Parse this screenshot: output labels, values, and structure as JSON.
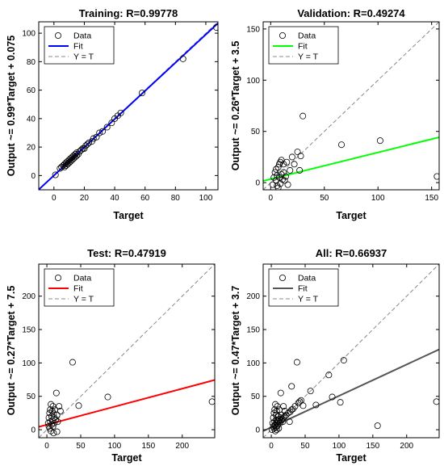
{
  "chart_data": [
    {
      "type": "scatter",
      "title": "Training: R=0.99778",
      "xlabel": "Target",
      "ylabel": "Output ~= 0.99*Target + 0.075",
      "xlim": [
        -10,
        108
      ],
      "ylim": [
        -10,
        108
      ],
      "xticks": [
        0,
        20,
        40,
        60,
        80,
        100
      ],
      "yticks": [
        0,
        20,
        40,
        60,
        80,
        100
      ],
      "fit": {
        "slope": 0.99,
        "intercept": 0.075,
        "color": "#0000ff"
      },
      "legend": {
        "position": "top-left",
        "entries": [
          "Data",
          "Fit",
          "Y = T"
        ]
      },
      "points": [
        [
          1,
          0.5
        ],
        [
          4,
          5
        ],
        [
          5,
          6
        ],
        [
          6,
          7
        ],
        [
          7,
          6
        ],
        [
          7,
          8
        ],
        [
          8,
          7
        ],
        [
          8,
          9
        ],
        [
          9,
          8
        ],
        [
          9,
          10
        ],
        [
          10,
          9
        ],
        [
          10,
          11
        ],
        [
          11,
          10
        ],
        [
          11,
          12
        ],
        [
          12,
          11
        ],
        [
          12,
          13
        ],
        [
          13,
          12
        ],
        [
          13,
          14
        ],
        [
          14,
          13
        ],
        [
          14,
          15
        ],
        [
          15,
          14
        ],
        [
          15,
          16
        ],
        [
          16,
          15
        ],
        [
          17,
          17
        ],
        [
          18,
          18
        ],
        [
          19,
          19
        ],
        [
          20,
          19
        ],
        [
          21,
          21
        ],
        [
          22,
          22
        ],
        [
          23,
          23
        ],
        [
          25,
          24
        ],
        [
          26,
          26
        ],
        [
          28,
          27
        ],
        [
          30,
          30
        ],
        [
          32,
          31
        ],
        [
          35,
          34
        ],
        [
          38,
          37
        ],
        [
          40,
          40
        ],
        [
          42,
          42
        ],
        [
          44,
          44
        ],
        [
          58,
          58
        ],
        [
          85,
          82
        ],
        [
          107,
          104
        ]
      ]
    },
    {
      "type": "scatter",
      "title": "Validation: R=0.49274",
      "xlabel": "Target",
      "ylabel": "Output ~= 0.26*Target + 3.5",
      "xlim": [
        -7,
        157
      ],
      "ylim": [
        -7,
        157
      ],
      "xticks": [
        0,
        50,
        100,
        150
      ],
      "yticks": [
        0,
        50,
        100,
        150
      ],
      "fit": {
        "slope": 0.26,
        "intercept": 3.5,
        "color": "#00ff00"
      },
      "legend": {
        "position": "top-left",
        "entries": [
          "Data",
          "Fit",
          "Y = T"
        ]
      },
      "points": [
        [
          2,
          -2
        ],
        [
          3,
          5
        ],
        [
          4,
          10
        ],
        [
          5,
          13
        ],
        [
          5,
          2
        ],
        [
          6,
          7
        ],
        [
          6,
          -3
        ],
        [
          7,
          -5
        ],
        [
          7,
          15
        ],
        [
          8,
          5
        ],
        [
          8,
          18
        ],
        [
          9,
          20
        ],
        [
          9,
          -1
        ],
        [
          10,
          8
        ],
        [
          10,
          22
        ],
        [
          11,
          3
        ],
        [
          12,
          18
        ],
        [
          12,
          10
        ],
        [
          13,
          2
        ],
        [
          14,
          6
        ],
        [
          15,
          20
        ],
        [
          16,
          -2
        ],
        [
          18,
          12
        ],
        [
          20,
          25
        ],
        [
          22,
          18
        ],
        [
          25,
          30
        ],
        [
          27,
          12
        ],
        [
          28,
          26
        ],
        [
          30,
          65
        ],
        [
          66,
          37
        ],
        [
          102,
          41
        ],
        [
          155,
          6
        ]
      ]
    },
    {
      "type": "scatter",
      "title": "Test: R=0.47919",
      "xlabel": "Target",
      "ylabel": "Output ~= 0.27*Target + 7.5",
      "xlim": [
        -12,
        248
      ],
      "ylim": [
        -12,
        248
      ],
      "xticks": [
        0,
        50,
        100,
        150,
        200
      ],
      "yticks": [
        0,
        50,
        100,
        150,
        200
      ],
      "fit": {
        "slope": 0.27,
        "intercept": 7.5,
        "color": "#ff0000"
      },
      "legend": {
        "position": "top-left",
        "entries": [
          "Data",
          "Fit",
          "Y = T"
        ]
      },
      "points": [
        [
          2,
          10
        ],
        [
          3,
          18
        ],
        [
          3,
          5
        ],
        [
          4,
          25
        ],
        [
          4,
          2
        ],
        [
          5,
          30
        ],
        [
          5,
          12
        ],
        [
          6,
          38
        ],
        [
          6,
          -2
        ],
        [
          7,
          20
        ],
        [
          7,
          8
        ],
        [
          8,
          28
        ],
        [
          8,
          14
        ],
        [
          9,
          35
        ],
        [
          9,
          5
        ],
        [
          10,
          24
        ],
        [
          10,
          -5
        ],
        [
          11,
          18
        ],
        [
          11,
          10
        ],
        [
          12,
          30
        ],
        [
          13,
          15
        ],
        [
          14,
          55
        ],
        [
          15,
          22
        ],
        [
          15,
          -3
        ],
        [
          16,
          12
        ],
        [
          18,
          35
        ],
        [
          20,
          28
        ],
        [
          38,
          101
        ],
        [
          47,
          36
        ],
        [
          90,
          49
        ],
        [
          244,
          42
        ]
      ]
    },
    {
      "type": "scatter",
      "title": "All: R=0.66937",
      "xlabel": "Target",
      "ylabel": "Output ~= 0.47*Target + 3.7",
      "xlim": [
        -12,
        248
      ],
      "ylim": [
        -12,
        248
      ],
      "xticks": [
        0,
        50,
        100,
        150,
        200
      ],
      "yticks": [
        0,
        50,
        100,
        150,
        200
      ],
      "fit": {
        "slope": 0.47,
        "intercept": 3.7,
        "color": "#555555"
      },
      "legend": {
        "position": "top-left",
        "entries": [
          "Data",
          "Fit",
          "Y = T"
        ]
      },
      "points": [
        [
          1,
          0
        ],
        [
          2,
          10
        ],
        [
          3,
          5
        ],
        [
          3,
          18
        ],
        [
          4,
          2
        ],
        [
          4,
          25
        ],
        [
          5,
          6
        ],
        [
          5,
          12
        ],
        [
          5,
          30
        ],
        [
          6,
          -2
        ],
        [
          6,
          8
        ],
        [
          6,
          38
        ],
        [
          7,
          4
        ],
        [
          7,
          15
        ],
        [
          7,
          22
        ],
        [
          8,
          0
        ],
        [
          8,
          10
        ],
        [
          8,
          28
        ],
        [
          9,
          6
        ],
        [
          9,
          14
        ],
        [
          9,
          35
        ],
        [
          10,
          8
        ],
        [
          10,
          20
        ],
        [
          11,
          12
        ],
        [
          11,
          2
        ],
        [
          12,
          16
        ],
        [
          12,
          30
        ],
        [
          13,
          10
        ],
        [
          14,
          18
        ],
        [
          14,
          55
        ],
        [
          15,
          14
        ],
        [
          15,
          22
        ],
        [
          16,
          16
        ],
        [
          17,
          12
        ],
        [
          18,
          18
        ],
        [
          18,
          35
        ],
        [
          20,
          20
        ],
        [
          20,
          28
        ],
        [
          22,
          22
        ],
        [
          25,
          25
        ],
        [
          27,
          12
        ],
        [
          28,
          27
        ],
        [
          30,
          30
        ],
        [
          30,
          65
        ],
        [
          32,
          31
        ],
        [
          35,
          35
        ],
        [
          38,
          101
        ],
        [
          40,
          40
        ],
        [
          42,
          42
        ],
        [
          44,
          44
        ],
        [
          47,
          36
        ],
        [
          58,
          58
        ],
        [
          66,
          37
        ],
        [
          85,
          82
        ],
        [
          90,
          49
        ],
        [
          102,
          41
        ],
        [
          107,
          104
        ],
        [
          157,
          6
        ],
        [
          244,
          42
        ]
      ]
    }
  ]
}
